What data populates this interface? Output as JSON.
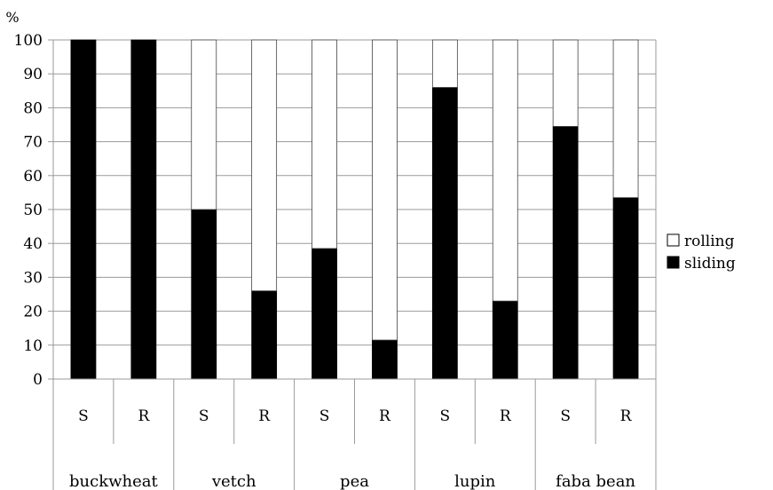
{
  "chart_data": {
    "type": "bar",
    "stacked": true,
    "y_unit": "%",
    "ylim": [
      0,
      100
    ],
    "yticks": [
      0,
      10,
      20,
      30,
      40,
      50,
      60,
      70,
      80,
      90,
      100
    ],
    "grid": true,
    "legend_position": "right",
    "groups": [
      "buckwheat",
      "vetch",
      "pea",
      "lupin",
      "faba bean"
    ],
    "categories": [
      "S",
      "R",
      "S",
      "R",
      "S",
      "R",
      "S",
      "R",
      "S",
      "R"
    ],
    "series": [
      {
        "name": "sliding",
        "color": "#000000",
        "values": [
          100,
          100,
          50,
          26,
          38.5,
          11.5,
          86,
          23,
          74.5,
          53.5
        ]
      },
      {
        "name": "rolling",
        "color": "#ffffff",
        "values": [
          0,
          0,
          50,
          74,
          61.5,
          88.5,
          14,
          77,
          25.5,
          46.5
        ]
      }
    ],
    "legend": [
      {
        "label": "rolling",
        "color": "#ffffff"
      },
      {
        "label": "sliding",
        "color": "#000000"
      }
    ]
  }
}
